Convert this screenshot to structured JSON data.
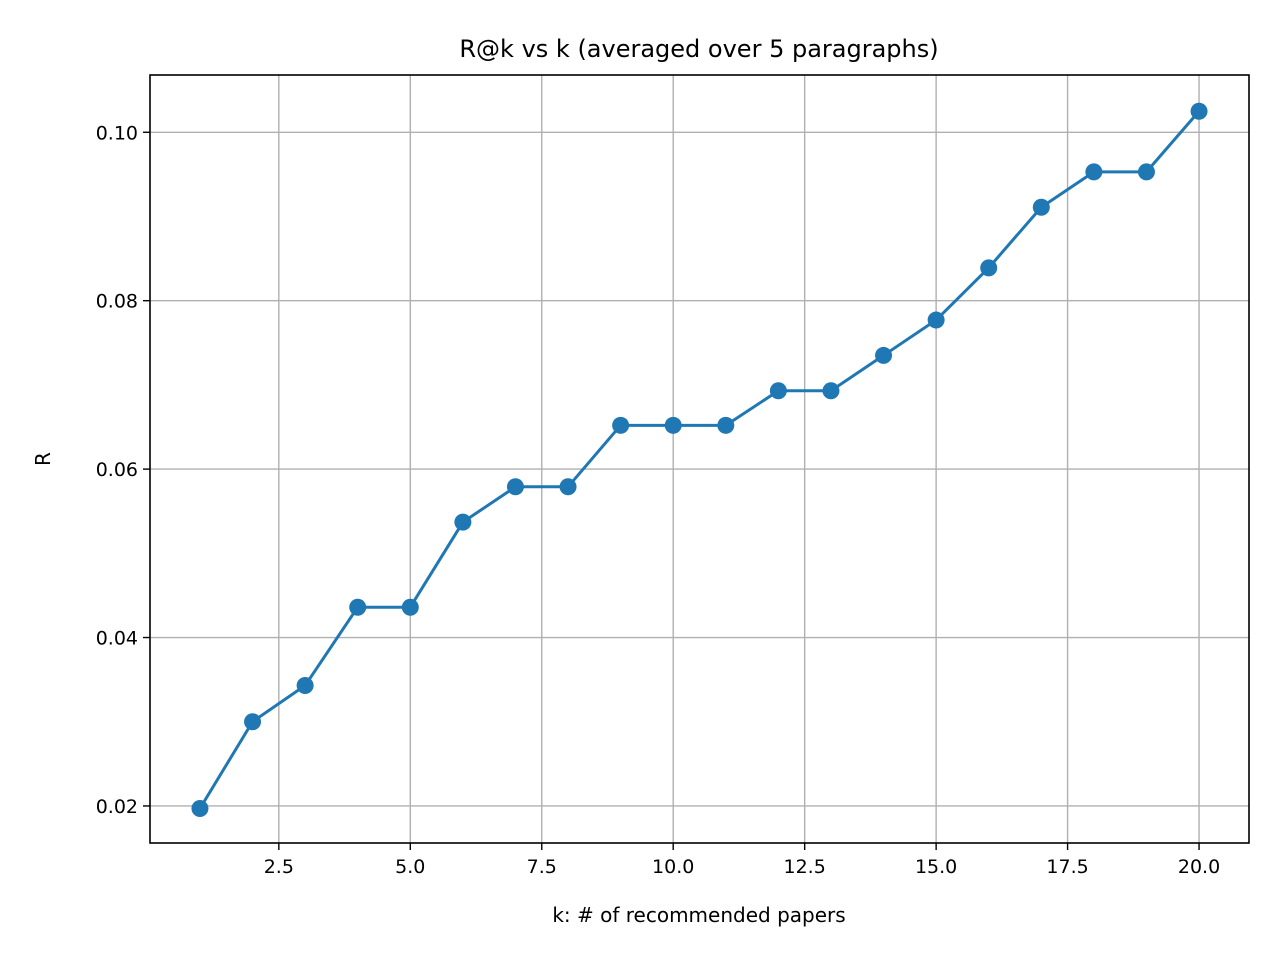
{
  "chart_data": {
    "type": "line",
    "title": "R@k vs k  (averaged over 5 paragraphs)",
    "xlabel": "k: # of recommended papers",
    "ylabel": "R",
    "xlim": [
      0.05,
      20.95
    ],
    "ylim": [
      0.0156,
      0.1068
    ],
    "xticks": [
      2.5,
      5.0,
      7.5,
      10.0,
      12.5,
      15.0,
      17.5,
      20.0
    ],
    "xtick_labels": [
      "2.5",
      "5.0",
      "7.5",
      "10.0",
      "12.5",
      "15.0",
      "17.5",
      "20.0"
    ],
    "yticks": [
      0.02,
      0.04,
      0.06,
      0.08,
      0.1
    ],
    "ytick_labels": [
      "0.02",
      "0.04",
      "0.06",
      "0.08",
      "0.10"
    ],
    "grid": true,
    "marker": "circle",
    "color": "#1f77b4",
    "series": [
      {
        "x": [
          1,
          2,
          3,
          4,
          5,
          6,
          7,
          8,
          9,
          10,
          11,
          12,
          13,
          14,
          15,
          16,
          17,
          18,
          19,
          20
        ],
        "values": [
          0.0197,
          0.03,
          0.0343,
          0.0436,
          0.0436,
          0.0537,
          0.0579,
          0.0579,
          0.0652,
          0.0652,
          0.0652,
          0.0693,
          0.0693,
          0.0735,
          0.0777,
          0.0839,
          0.0911,
          0.0953,
          0.0953,
          0.1025
        ]
      }
    ]
  }
}
